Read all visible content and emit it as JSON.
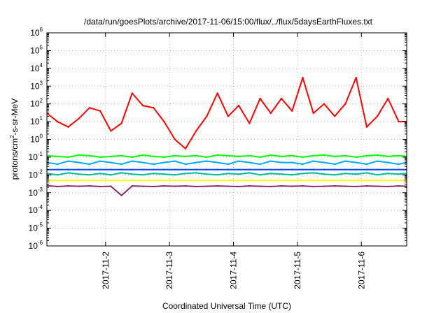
{
  "chart_data": {
    "type": "line",
    "title": "/data/run/goesPlots/archive/2017-11-06/15:00/flux/../flux/5daysEarthFluxes.txt",
    "xlabel": "Coordinated Universal Time (UTC)",
    "ylabel": "protons/cm2-s-sr-MeV",
    "ylabel_parts": {
      "before": "protons/cm",
      "sup": "2",
      "after": "-s-sr-MeV"
    },
    "y_scale": "log",
    "ylim": [
      1e-06,
      1000000.0
    ],
    "xlim": [
      "2017-11-01T02:00",
      "2017-11-06T17:00"
    ],
    "grid": true,
    "legend": "none",
    "y_ticks": [
      {
        "value": 1e-06,
        "base": "10",
        "exp": "-6"
      },
      {
        "value": 1e-05,
        "base": "10",
        "exp": "-5"
      },
      {
        "value": 0.0001,
        "base": "10",
        "exp": "-4"
      },
      {
        "value": 0.001,
        "base": "10",
        "exp": "-3"
      },
      {
        "value": 0.01,
        "base": "10",
        "exp": "-2"
      },
      {
        "value": 0.1,
        "base": "10",
        "exp": "-1"
      },
      {
        "value": 1,
        "base": "10",
        "exp": "0"
      },
      {
        "value": 10,
        "base": "10",
        "exp": "1"
      },
      {
        "value": 100,
        "base": "10",
        "exp": "2"
      },
      {
        "value": 1000,
        "base": "10",
        "exp": "3"
      },
      {
        "value": 10000,
        "base": "10",
        "exp": "4"
      },
      {
        "value": 100000,
        "base": "10",
        "exp": "5"
      },
      {
        "value": 1000000,
        "base": "10",
        "exp": "6"
      }
    ],
    "x_ticks": [
      "2017-11-2",
      "2017-11-3",
      "2017-11-4",
      "2017-11-5",
      "2017-11-6"
    ],
    "x": [
      "2017-11-01T02:00",
      "2017-11-01T06:00",
      "2017-11-01T10:00",
      "2017-11-01T14:00",
      "2017-11-01T18:00",
      "2017-11-01T22:00",
      "2017-11-02T02:00",
      "2017-11-02T06:00",
      "2017-11-02T10:00",
      "2017-11-02T14:00",
      "2017-11-02T18:00",
      "2017-11-02T22:00",
      "2017-11-03T02:00",
      "2017-11-03T06:00",
      "2017-11-03T10:00",
      "2017-11-03T14:00",
      "2017-11-03T18:00",
      "2017-11-03T22:00",
      "2017-11-04T02:00",
      "2017-11-04T06:00",
      "2017-11-04T10:00",
      "2017-11-04T14:00",
      "2017-11-04T18:00",
      "2017-11-04T22:00",
      "2017-11-05T02:00",
      "2017-11-05T06:00",
      "2017-11-05T10:00",
      "2017-11-05T14:00",
      "2017-11-05T18:00",
      "2017-11-05T22:00",
      "2017-11-06T02:00",
      "2017-11-06T06:00",
      "2017-11-06T10:00",
      "2017-11-06T14:00",
      "2017-11-06T17:00"
    ],
    "series": [
      {
        "color": "#ff0000",
        "values": [
          30,
          10,
          5,
          15,
          60,
          40,
          3,
          8,
          400,
          80,
          60,
          10,
          1,
          0.3,
          3,
          20,
          400,
          20,
          80,
          8,
          200,
          30,
          200,
          40,
          3000,
          30,
          100,
          20,
          100,
          3000,
          5,
          20,
          200,
          10,
          10
        ]
      },
      {
        "color": "#00ff00",
        "values": [
          0.12,
          0.11,
          0.1,
          0.13,
          0.12,
          0.1,
          0.11,
          0.12,
          0.1,
          0.13,
          0.11,
          0.1,
          0.12,
          0.11,
          0.12,
          0.1,
          0.13,
          0.12,
          0.11,
          0.12,
          0.1,
          0.13,
          0.11,
          0.12,
          0.1,
          0.12,
          0.13,
          0.11,
          0.12,
          0.1,
          0.12,
          0.13,
          0.11,
          0.12,
          0.11
        ]
      },
      {
        "color": "#00aaff",
        "values": [
          0.05,
          0.04,
          0.06,
          0.05,
          0.04,
          0.06,
          0.05,
          0.04,
          0.06,
          0.05,
          0.04,
          0.05,
          0.06,
          0.04,
          0.05,
          0.06,
          0.05,
          0.04,
          0.06,
          0.05,
          0.04,
          0.06,
          0.05,
          0.05,
          0.04,
          0.06,
          0.05,
          0.04,
          0.06,
          0.05,
          0.04,
          0.06,
          0.05,
          0.04,
          0.05
        ]
      },
      {
        "color": "#0044ff",
        "values": [
          0.02,
          0.02,
          0.02,
          0.02,
          0.02,
          0.02,
          0.02,
          0.02,
          0.02,
          0.02,
          0.02,
          0.02,
          0.02,
          0.02,
          0.02,
          0.02,
          0.02,
          0.02,
          0.02,
          0.02,
          0.02,
          0.02,
          0.02,
          0.02,
          0.02,
          0.02,
          0.02,
          0.02,
          0.02,
          0.02,
          0.02,
          0.02,
          0.02,
          0.02,
          0.02
        ]
      },
      {
        "color": "#00bb99",
        "values": [
          0.012,
          0.01,
          0.013,
          0.011,
          0.01,
          0.012,
          0.01,
          0.013,
          0.011,
          0.01,
          0.012,
          0.011,
          0.01,
          0.012,
          0.013,
          0.011,
          0.01,
          0.012,
          0.011,
          0.013,
          0.01,
          0.012,
          0.011,
          0.01,
          0.012,
          0.013,
          0.011,
          0.01,
          0.012,
          0.011,
          0.013,
          0.01,
          0.012,
          0.011,
          0.012
        ]
      },
      {
        "color": "#ffff00",
        "values": [
          0.005,
          0.005,
          0.005,
          0.005,
          0.005,
          0.005,
          0.005,
          0.005,
          0.005,
          0.005,
          0.005,
          0.005,
          0.005,
          0.005,
          0.005,
          0.005,
          0.005,
          0.005,
          0.005,
          0.005,
          0.005,
          0.005,
          0.005,
          0.005,
          0.005,
          0.005,
          0.005,
          0.005,
          0.005,
          0.005,
          0.005,
          0.005,
          0.005,
          0.005,
          0.005
        ]
      },
      {
        "color": "#8b2a6b",
        "values": [
          0.0025,
          0.0022,
          0.0024,
          0.0023,
          0.0024,
          0.0022,
          0.0023,
          0.0007,
          0.0024,
          0.0023,
          0.0022,
          0.0024,
          0.0023,
          0.0024,
          0.0022,
          0.0023,
          0.0024,
          0.0023,
          0.0022,
          0.0024,
          0.0023,
          0.0022,
          0.0024,
          0.0023,
          0.0024,
          0.0022,
          0.0023,
          0.0024,
          0.0023,
          0.0022,
          0.0024,
          0.0023,
          0.0022,
          0.0024,
          0.0023
        ]
      }
    ]
  }
}
